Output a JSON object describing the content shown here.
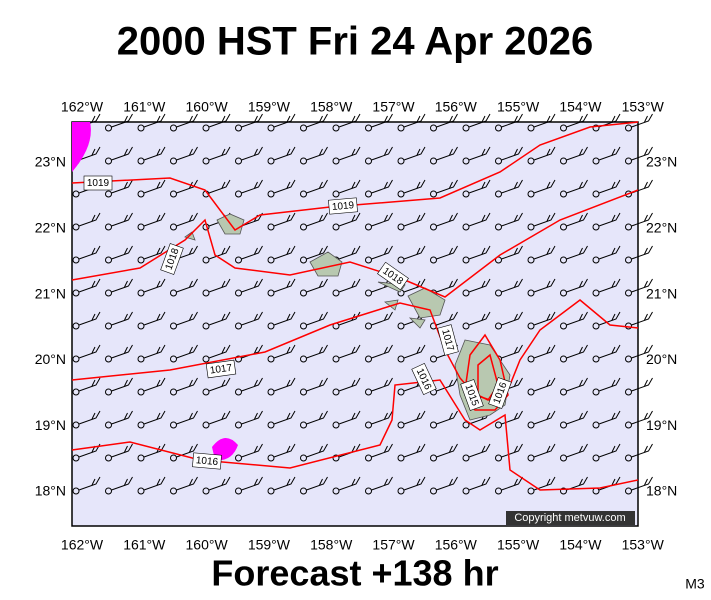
{
  "header": {
    "title": "2000 HST Fri 24 Apr 2026"
  },
  "map": {
    "lon_labels": [
      "162°W",
      "161°W",
      "160°W",
      "159°W",
      "158°W",
      "157°W",
      "156°W",
      "155°W",
      "154°W",
      "153°W"
    ],
    "lat_labels": [
      "23°N",
      "22°N",
      "21°N",
      "20°N",
      "19°N",
      "18°N"
    ],
    "isobar_labels": [
      "1019",
      "1019",
      "1018",
      "1018",
      "1017",
      "1017",
      "1016",
      "1016",
      "1015",
      "1016"
    ],
    "copyright": "Copyright metvuw.com"
  },
  "footer": {
    "forecast": "Forecast +138 hr",
    "code": "M3"
  }
}
